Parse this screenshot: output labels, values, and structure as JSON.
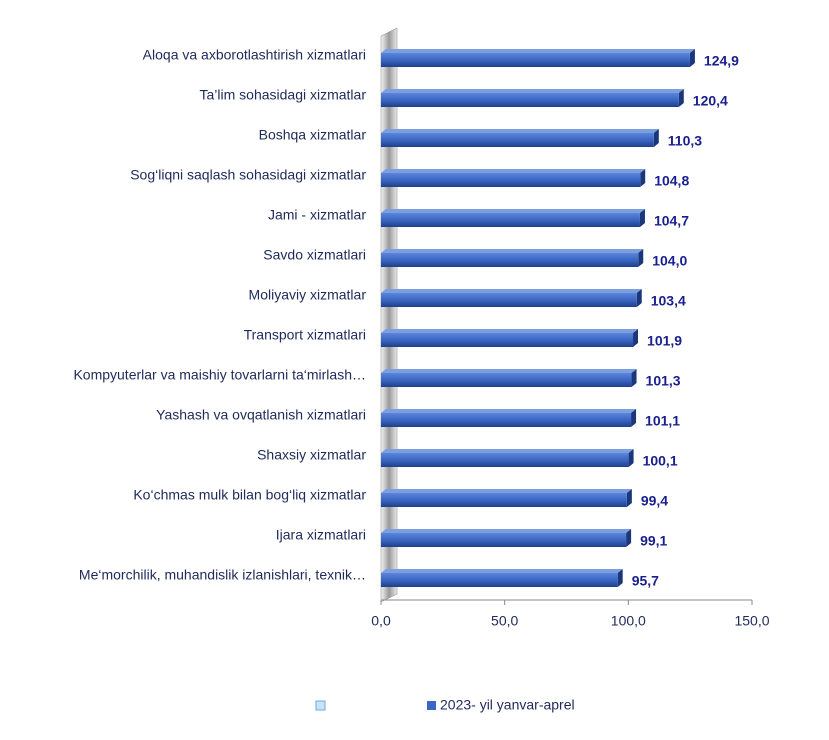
{
  "chart_data": {
    "type": "barh",
    "categories": [
      "Aloqa va axborotlashtirish xizmatlari",
      "Ta’lim sohasidagi xizmatlar",
      "Boshqa xizmatlar",
      "Sog‘liqni saqlash sohasidagi xizmatlar",
      "Jami - xizmatlar",
      "Savdo xizmatlari",
      "Moliyaviy  xizmatlar",
      "Transport xizmatlari",
      "Kompyuterlar va maishiy tovarlarni ta‘mirlash…",
      "Yashash va ovqatlanish xizmatlari",
      "Shaxsiy xizmatlar",
      "Ko‘chmas mulk bilan bog‘liq xizmatlar",
      "Ijara xizmatlari",
      "Me‘morchilik, muhandislik izlanishlari, texnik…"
    ],
    "series": [
      {
        "name": "2023- yil yanvar-aprel",
        "color": "#3a66c4",
        "values": [
          124.9,
          120.4,
          110.3,
          104.8,
          104.7,
          104.0,
          103.4,
          101.9,
          101.3,
          101.1,
          100.1,
          99.4,
          99.1,
          95.7
        ],
        "value_labels": [
          "124,9",
          "120,4",
          "110,3",
          "104,8",
          "104,7",
          "104,0",
          "103,4",
          "101,9",
          "101,3",
          "101,1",
          "100,1",
          "99,4",
          "99,1",
          "95,7"
        ]
      }
    ],
    "xlim": [
      0,
      150
    ],
    "xticks": [
      {
        "value": 0,
        "label": "0,0"
      },
      {
        "value": 50,
        "label": "50,0"
      },
      {
        "value": 100,
        "label": "100,0"
      },
      {
        "value": 150,
        "label": "150,0"
      }
    ],
    "legend": "bottom"
  }
}
